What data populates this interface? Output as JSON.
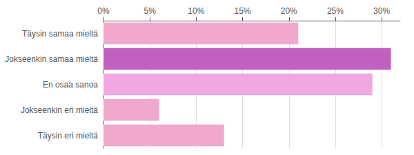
{
  "chart_data": {
    "type": "bar",
    "orientation": "horizontal",
    "categories": [
      "Täysin samaa mieltä",
      "Jokseenkin samaa mieltä",
      "En osaa sanoa",
      "Jokseenkin eri mieltä",
      "Täysin eri mieltä"
    ],
    "values": [
      21,
      31,
      29,
      6,
      13
    ],
    "colors": [
      "#f0a8cc",
      "#c060c0",
      "#f0a8e0",
      "#f0a8cc",
      "#f0a8cc"
    ],
    "xlim": [
      0,
      32
    ],
    "xticks": [
      {
        "value": 0,
        "label": "0%"
      },
      {
        "value": 5,
        "label": "5%"
      },
      {
        "value": 10,
        "label": "10%"
      },
      {
        "value": 15,
        "label": "15%"
      },
      {
        "value": 20,
        "label": "20%"
      },
      {
        "value": 25,
        "label": "25%"
      },
      {
        "value": 30,
        "label": "30%"
      }
    ],
    "grid": true
  }
}
